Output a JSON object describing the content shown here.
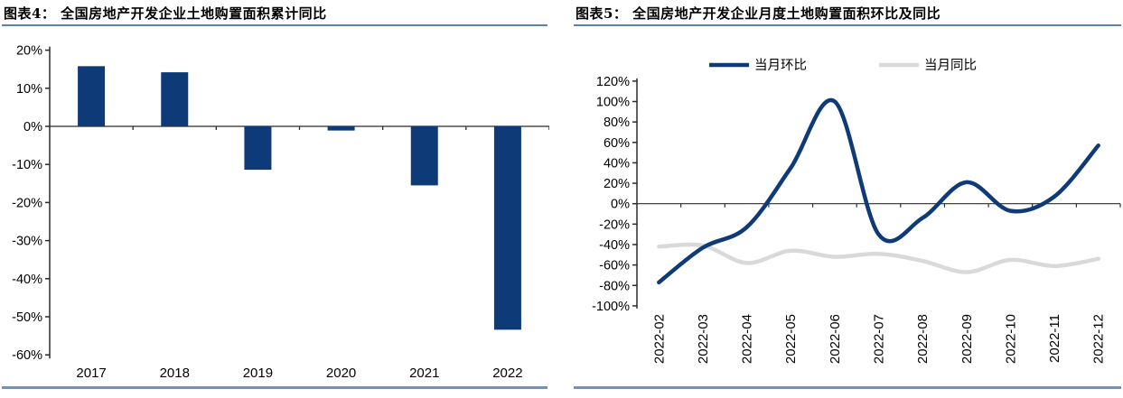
{
  "chart_data": [
    {
      "type": "bar",
      "title": "图表4：  全国房地产开发企业土地购置面积累计同比",
      "categories": [
        "2017",
        "2018",
        "2019",
        "2020",
        "2021",
        "2022"
      ],
      "values": [
        15.8,
        14.2,
        -11.4,
        -1.1,
        -15.5,
        -53.4
      ],
      "unit": "%",
      "ylim": [
        -60,
        20
      ],
      "ytick_step": 10,
      "bar_color": "#0e3b78",
      "grid": false,
      "legend": "none"
    },
    {
      "type": "line",
      "title": "图表5：  全国房地产开发企业月度土地购置面积环比及同比",
      "x": [
        "2022-02",
        "2022-03",
        "2022-04",
        "2022-05",
        "2022-06",
        "2022-07",
        "2022-08",
        "2022-09",
        "2022-10",
        "2022-11",
        "2022-12"
      ],
      "series": [
        {
          "name": "当月环比",
          "color": "#0e3b78",
          "values": [
            -77,
            -43,
            -23,
            35,
            100,
            -30,
            -14,
            21,
            -7,
            7,
            57
          ]
        },
        {
          "name": "当月同比",
          "color": "#d9d9d9",
          "values": [
            -42,
            -41,
            -58,
            -46,
            -52,
            -49,
            -56,
            -67,
            -55,
            -61,
            -54
          ]
        }
      ],
      "unit": "%",
      "ylim": [
        -100,
        120
      ],
      "ytick_step": 20,
      "grid": false,
      "smooth": true,
      "legend_position": "top"
    }
  ],
  "styles": {
    "axis_color": "#2b2b2b",
    "title_rule_color": "#5b80b5",
    "bottom_rule_color": "#7a90ad"
  }
}
